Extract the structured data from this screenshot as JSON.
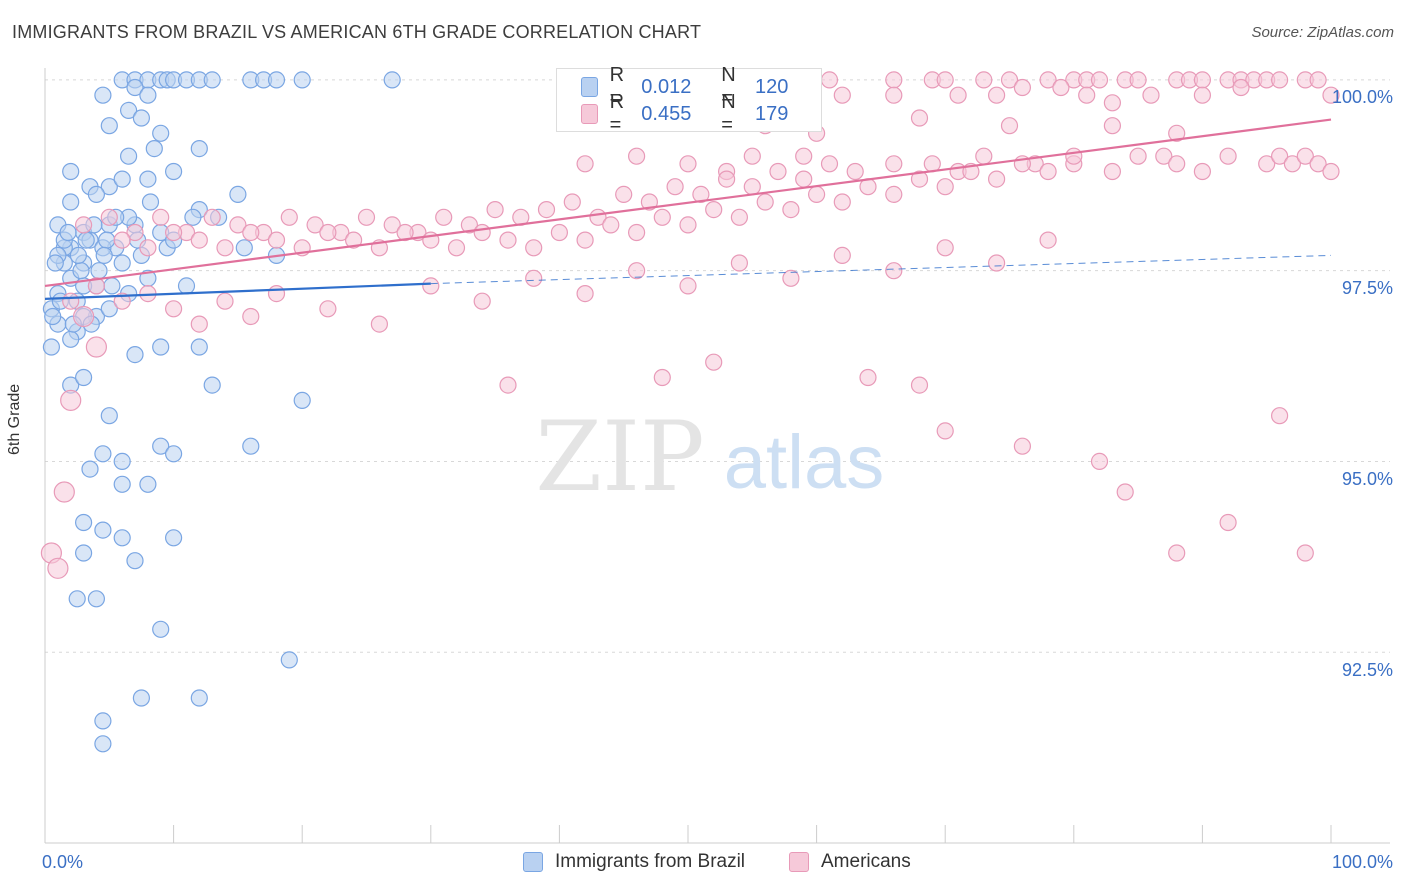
{
  "chart_data": {
    "type": "scatter",
    "title": "IMMIGRANTS FROM BRAZIL VS AMERICAN 6TH GRADE CORRELATION CHART",
    "source": "Source: ZipAtlas.com",
    "xlabel": "",
    "ylabel": "6th Grade",
    "xlim": [
      0,
      100
    ],
    "ylim": [
      90.0,
      100.3
    ],
    "x_tick_labels": [
      "0.0%",
      "100.0%"
    ],
    "y_ticks": [
      92.5,
      95.0,
      97.5,
      100.0
    ],
    "y_tick_labels": [
      "92.5%",
      "95.0%",
      "97.5%",
      "100.0%"
    ],
    "watermark": {
      "zip": "ZIP",
      "atlas": "atlas"
    },
    "legend_stats": [
      {
        "r_label": "R =",
        "r_value": "0.012",
        "n_label": "N =",
        "n_value": "120"
      },
      {
        "r_label": "R =",
        "r_value": "0.455",
        "n_label": "N =",
        "n_value": "179"
      }
    ],
    "series": [
      {
        "name": "Immigrants from Brazil",
        "color": "#7aa6e3",
        "fill": "#b9d1f1",
        "trend": {
          "x": [
            0,
            30
          ],
          "y": [
            97.13,
            97.33
          ],
          "dashed_to": [
            100,
            97.7
          ],
          "color": "#2f6fcc"
        },
        "points": [
          [
            6,
            100
          ],
          [
            7,
            100
          ],
          [
            8,
            100
          ],
          [
            9,
            100
          ],
          [
            9.5,
            100
          ],
          [
            10,
            100
          ],
          [
            11,
            100
          ],
          [
            12,
            100
          ],
          [
            13,
            100
          ],
          [
            16,
            100
          ],
          [
            17,
            100
          ],
          [
            18,
            100
          ],
          [
            20,
            100
          ],
          [
            27,
            100
          ],
          [
            4.5,
            99.8
          ],
          [
            6.5,
            99.6
          ],
          [
            7,
            99.9
          ],
          [
            8,
            99.8
          ],
          [
            5,
            99.4
          ],
          [
            7.5,
            99.5
          ],
          [
            9,
            99.3
          ],
          [
            6.5,
            99
          ],
          [
            8.5,
            99.1
          ],
          [
            12,
            99.1
          ],
          [
            2,
            98.8
          ],
          [
            3.5,
            98.6
          ],
          [
            5,
            98.6
          ],
          [
            6,
            98.7
          ],
          [
            10,
            98.8
          ],
          [
            2,
            98.4
          ],
          [
            4,
            98.5
          ],
          [
            8,
            98.7
          ],
          [
            15,
            98.5
          ],
          [
            1,
            98.1
          ],
          [
            3,
            98.0
          ],
          [
            5,
            98.1
          ],
          [
            7,
            98.1
          ],
          [
            9,
            98.0
          ],
          [
            12,
            98.3
          ],
          [
            2,
            97.8
          ],
          [
            3.5,
            97.9
          ],
          [
            5.5,
            97.8
          ],
          [
            7.5,
            97.7
          ],
          [
            1.5,
            97.6
          ],
          [
            3,
            97.6
          ],
          [
            4.5,
            97.8
          ],
          [
            6,
            97.6
          ],
          [
            8,
            97.4
          ],
          [
            1,
            97.2
          ],
          [
            2.5,
            97.1
          ],
          [
            4,
            97.3
          ],
          [
            6.5,
            97.2
          ],
          [
            11,
            97.3
          ],
          [
            1,
            96.8
          ],
          [
            2.5,
            96.7
          ],
          [
            4,
            96.9
          ],
          [
            0.5,
            96.5
          ],
          [
            7,
            96.4
          ],
          [
            9,
            96.5
          ],
          [
            12,
            96.5
          ],
          [
            2,
            96.0
          ],
          [
            3,
            96.1
          ],
          [
            13,
            96.0
          ],
          [
            5,
            95.6
          ],
          [
            20,
            95.8
          ],
          [
            4.5,
            95.1
          ],
          [
            6,
            95.0
          ],
          [
            9,
            95.2
          ],
          [
            10,
            95.1
          ],
          [
            16,
            95.2
          ],
          [
            3.5,
            94.9
          ],
          [
            6,
            94.7
          ],
          [
            8,
            94.7
          ],
          [
            3,
            94.2
          ],
          [
            4.5,
            94.1
          ],
          [
            6,
            94.0
          ],
          [
            10,
            94.0
          ],
          [
            3,
            93.8
          ],
          [
            7,
            93.7
          ],
          [
            2.5,
            93.2
          ],
          [
            4,
            93.2
          ],
          [
            9,
            92.8
          ],
          [
            19,
            92.4
          ],
          [
            12,
            91.9
          ],
          [
            7.5,
            91.9
          ],
          [
            4.5,
            91.6
          ],
          [
            4.5,
            91.3
          ],
          [
            1.5,
            97.8
          ],
          [
            2,
            97.4
          ],
          [
            3,
            97.3
          ],
          [
            1,
            97.7
          ],
          [
            0.5,
            97.0
          ],
          [
            2,
            96.6
          ],
          [
            3,
            96.9
          ],
          [
            5,
            97.0
          ],
          [
            1.5,
            97.9
          ],
          [
            0.8,
            97.6
          ],
          [
            4.8,
            97.9
          ],
          [
            6.5,
            98.2
          ],
          [
            5.5,
            98.2
          ],
          [
            3.8,
            98.1
          ],
          [
            7.2,
            97.9
          ],
          [
            9.5,
            97.8
          ],
          [
            11.5,
            98.2
          ],
          [
            8.2,
            98.4
          ],
          [
            13.5,
            98.2
          ],
          [
            15.5,
            97.8
          ],
          [
            18,
            97.7
          ],
          [
            10,
            97.9
          ],
          [
            2.8,
            97.5
          ],
          [
            4.2,
            97.5
          ],
          [
            5.2,
            97.3
          ],
          [
            1.2,
            97.1
          ],
          [
            2.2,
            96.8
          ],
          [
            3.6,
            96.8
          ],
          [
            0.6,
            96.9
          ],
          [
            1.8,
            98.0
          ],
          [
            2.6,
            97.7
          ],
          [
            3.2,
            97.9
          ],
          [
            4.6,
            97.7
          ]
        ]
      },
      {
        "name": "Americans",
        "color": "#e89ab8",
        "fill": "#f6c9d9",
        "trend": {
          "x": [
            0,
            100
          ],
          "y": [
            97.3,
            99.48
          ],
          "color": "#e0709b"
        },
        "points": [
          [
            61,
            100
          ],
          [
            66,
            100
          ],
          [
            69,
            100
          ],
          [
            70,
            100
          ],
          [
            73,
            100
          ],
          [
            75,
            100
          ],
          [
            78,
            100
          ],
          [
            80,
            100
          ],
          [
            81,
            100
          ],
          [
            82,
            100
          ],
          [
            84,
            100
          ],
          [
            85,
            100
          ],
          [
            88,
            100
          ],
          [
            89,
            100
          ],
          [
            90,
            100
          ],
          [
            92,
            100
          ],
          [
            93,
            100
          ],
          [
            94,
            100
          ],
          [
            95,
            100
          ],
          [
            96,
            100
          ],
          [
            98,
            100
          ],
          [
            99,
            100
          ],
          [
            62,
            99.8
          ],
          [
            66,
            99.8
          ],
          [
            71,
            99.8
          ],
          [
            74,
            99.8
          ],
          [
            76,
            99.9
          ],
          [
            79,
            99.9
          ],
          [
            81,
            99.8
          ],
          [
            83,
            99.7
          ],
          [
            86,
            99.8
          ],
          [
            90,
            99.8
          ],
          [
            93,
            99.9
          ],
          [
            100,
            99.8
          ],
          [
            56,
            99.4
          ],
          [
            60,
            99.3
          ],
          [
            68,
            99.5
          ],
          [
            75,
            99.4
          ],
          [
            83,
            99.4
          ],
          [
            88,
            99.3
          ],
          [
            42,
            98.9
          ],
          [
            46,
            99.0
          ],
          [
            50,
            98.9
          ],
          [
            53,
            98.8
          ],
          [
            55,
            99.0
          ],
          [
            59,
            99.0
          ],
          [
            61,
            98.9
          ],
          [
            63,
            98.8
          ],
          [
            66,
            98.9
          ],
          [
            69,
            98.9
          ],
          [
            71,
            98.8
          ],
          [
            73,
            99.0
          ],
          [
            77,
            98.9
          ],
          [
            80,
            98.9
          ],
          [
            83,
            98.8
          ],
          [
            85,
            99.0
          ],
          [
            87,
            99.0
          ],
          [
            88,
            98.9
          ],
          [
            90,
            98.8
          ],
          [
            92,
            99.0
          ],
          [
            95,
            98.9
          ],
          [
            96,
            99.0
          ],
          [
            97,
            98.9
          ],
          [
            98,
            99.0
          ],
          [
            99,
            98.9
          ],
          [
            100,
            98.8
          ],
          [
            3,
            98.1
          ],
          [
            5,
            98.2
          ],
          [
            7,
            98.0
          ],
          [
            9,
            98.2
          ],
          [
            11,
            98.0
          ],
          [
            13,
            98.2
          ],
          [
            15,
            98.1
          ],
          [
            17,
            98.0
          ],
          [
            19,
            98.2
          ],
          [
            21,
            98.1
          ],
          [
            23,
            98.0
          ],
          [
            25,
            98.2
          ],
          [
            27,
            98.1
          ],
          [
            29,
            98.0
          ],
          [
            31,
            98.2
          ],
          [
            33,
            98.1
          ],
          [
            35,
            98.3
          ],
          [
            37,
            98.2
          ],
          [
            39,
            98.3
          ],
          [
            41,
            98.4
          ],
          [
            43,
            98.2
          ],
          [
            45,
            98.5
          ],
          [
            47,
            98.4
          ],
          [
            49,
            98.6
          ],
          [
            51,
            98.5
          ],
          [
            53,
            98.7
          ],
          [
            55,
            98.6
          ],
          [
            57,
            98.8
          ],
          [
            59,
            98.7
          ],
          [
            6,
            97.9
          ],
          [
            8,
            97.8
          ],
          [
            10,
            98.0
          ],
          [
            12,
            97.9
          ],
          [
            14,
            97.8
          ],
          [
            16,
            98.0
          ],
          [
            18,
            97.9
          ],
          [
            20,
            97.8
          ],
          [
            22,
            98.0
          ],
          [
            24,
            97.9
          ],
          [
            26,
            97.8
          ],
          [
            28,
            98.0
          ],
          [
            30,
            97.9
          ],
          [
            32,
            97.8
          ],
          [
            34,
            98.0
          ],
          [
            36,
            97.9
          ],
          [
            38,
            97.8
          ],
          [
            40,
            98.0
          ],
          [
            42,
            97.9
          ],
          [
            44,
            98.1
          ],
          [
            46,
            98.0
          ],
          [
            48,
            98.2
          ],
          [
            50,
            98.1
          ],
          [
            52,
            98.3
          ],
          [
            54,
            98.2
          ],
          [
            56,
            98.4
          ],
          [
            58,
            98.3
          ],
          [
            60,
            98.5
          ],
          [
            62,
            98.4
          ],
          [
            64,
            98.6
          ],
          [
            66,
            98.5
          ],
          [
            68,
            98.7
          ],
          [
            70,
            98.6
          ],
          [
            72,
            98.8
          ],
          [
            74,
            98.7
          ],
          [
            76,
            98.9
          ],
          [
            78,
            98.8
          ],
          [
            80,
            99.0
          ],
          [
            4,
            97.3
          ],
          [
            6,
            97.1
          ],
          [
            8,
            97.2
          ],
          [
            10,
            97.0
          ],
          [
            12,
            96.8
          ],
          [
            14,
            97.1
          ],
          [
            16,
            96.9
          ],
          [
            18,
            97.2
          ],
          [
            22,
            97.0
          ],
          [
            26,
            96.8
          ],
          [
            30,
            97.3
          ],
          [
            34,
            97.1
          ],
          [
            38,
            97.4
          ],
          [
            42,
            97.2
          ],
          [
            46,
            97.5
          ],
          [
            50,
            97.3
          ],
          [
            54,
            97.6
          ],
          [
            58,
            97.4
          ],
          [
            62,
            97.7
          ],
          [
            66,
            97.5
          ],
          [
            70,
            97.8
          ],
          [
            74,
            97.6
          ],
          [
            78,
            97.9
          ],
          [
            2,
            97.1
          ],
          [
            3,
            96.9
          ],
          [
            4,
            96.5
          ],
          [
            2,
            95.8
          ],
          [
            1.5,
            94.6
          ],
          [
            0.5,
            93.8
          ],
          [
            1,
            93.6
          ],
          [
            36,
            96.0
          ],
          [
            48,
            96.1
          ],
          [
            52,
            96.3
          ],
          [
            64,
            96.1
          ],
          [
            68,
            96.0
          ],
          [
            70,
            95.4
          ],
          [
            76,
            95.2
          ],
          [
            82,
            95.0
          ],
          [
            84,
            94.6
          ],
          [
            88,
            93.8
          ],
          [
            92,
            94.2
          ],
          [
            96,
            95.6
          ],
          [
            98,
            93.8
          ]
        ]
      }
    ]
  }
}
